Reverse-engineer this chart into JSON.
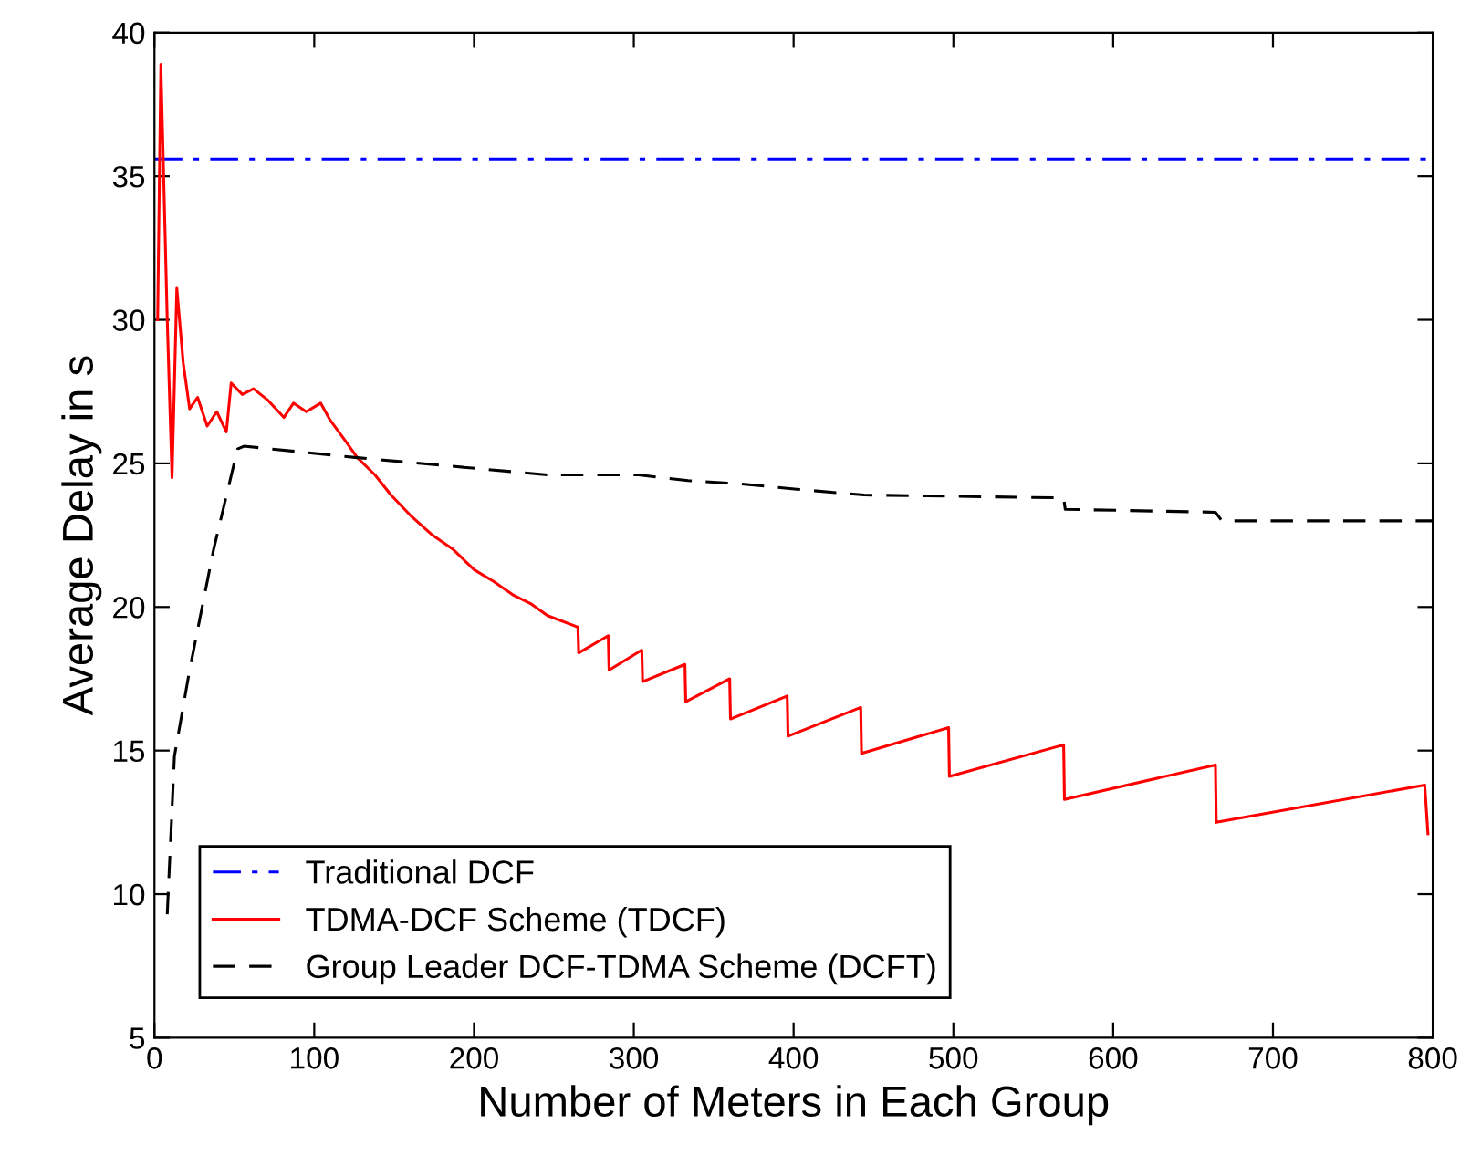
{
  "chart_data": {
    "type": "line",
    "xlabel": "Number of Meters in Each Group",
    "ylabel": "Average Delay in s",
    "xlim": [
      0,
      800
    ],
    "ylim": [
      5,
      40
    ],
    "xticks": [
      0,
      100,
      200,
      300,
      400,
      500,
      600,
      700,
      800
    ],
    "yticks": [
      5,
      10,
      15,
      20,
      25,
      30,
      35,
      40
    ],
    "grid": false,
    "legend": "lower left",
    "marker": "none",
    "series": [
      {
        "name": "Traditional DCF",
        "color": "#0000ff",
        "line_style": "dashdot",
        "x": [
          0,
          800
        ],
        "values": [
          35.6,
          35.6
        ]
      },
      {
        "name": "TDMA-DCF Scheme (TDCF)",
        "color": "#ff0000",
        "line_style": "solid",
        "x": [
          2,
          4,
          8,
          11,
          14,
          18,
          22,
          27,
          33,
          39,
          45,
          48,
          55,
          62,
          71,
          81,
          87,
          95,
          104,
          110,
          118,
          127,
          138,
          148,
          160,
          174,
          187,
          200,
          212,
          225,
          236,
          246,
          265,
          265.5,
          284,
          284.5,
          305,
          305.5,
          332,
          332.5,
          360,
          360.5,
          396,
          396.5,
          442,
          442.5,
          497,
          497.5,
          569,
          569.5,
          664,
          664.5,
          795,
          797
        ],
        "values": [
          30,
          38.9,
          30,
          24.5,
          31.1,
          28.5,
          26.9,
          27.3,
          26.3,
          26.8,
          26.1,
          27.8,
          27.4,
          27.6,
          27.2,
          26.6,
          27.1,
          26.8,
          27.1,
          26.5,
          25.9,
          25.2,
          24.6,
          23.9,
          23.2,
          22.5,
          22.0,
          21.3,
          20.9,
          20.4,
          20.1,
          19.7,
          19.3,
          18.4,
          19.0,
          17.8,
          18.5,
          17.4,
          18.0,
          16.7,
          17.5,
          16.1,
          16.9,
          15.5,
          16.5,
          14.9,
          15.8,
          14.1,
          15.2,
          13.3,
          14.5,
          12.5,
          13.8,
          12.1
        ]
      },
      {
        "name": "Group Leader DCF-TDMA Scheme (DCFT)",
        "color": "#000000",
        "line_style": "dashed",
        "x": [
          8,
          12.5,
          22,
          37,
          52,
          56,
          127,
          246,
          303,
          334,
          364,
          402,
          444,
          569,
          570,
          664,
          668,
          800
        ],
        "values": [
          9.3,
          14.8,
          17.8,
          22.0,
          25.5,
          25.6,
          25.2,
          24.6,
          24.6,
          24.4,
          24.3,
          24.1,
          23.9,
          23.8,
          23.4,
          23.3,
          23.0,
          23.0
        ]
      }
    ]
  }
}
